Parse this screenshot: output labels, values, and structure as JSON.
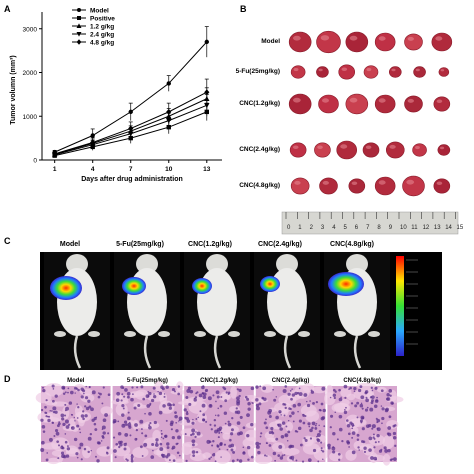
{
  "panels": {
    "a": {
      "letter": "A"
    },
    "b": {
      "letter": "B"
    },
    "c": {
      "letter": "C"
    },
    "d": {
      "letter": "D"
    }
  },
  "chart_data": {
    "type": "line",
    "xlabel": "Days after drug administration",
    "ylabel": "Tumor volumn (mm³)",
    "x": [
      1,
      4,
      7,
      10,
      13
    ],
    "x_ticks": [
      "1",
      "4",
      "7",
      "10",
      "13"
    ],
    "y_ticks": [
      "0",
      "1000",
      "2000",
      "3000"
    ],
    "ylim": [
      0,
      3200
    ],
    "legend_position": "top-left",
    "series": [
      {
        "name": "Model",
        "marker": "circle",
        "values": [
          180,
          560,
          1100,
          1750,
          2700
        ],
        "errors": [
          40,
          150,
          200,
          180,
          350
        ]
      },
      {
        "name": "Positive",
        "marker": "square",
        "values": [
          100,
          300,
          500,
          750,
          1100
        ],
        "errors": [
          30,
          80,
          120,
          150,
          200
        ]
      },
      {
        "name": "1.2 g/kg",
        "marker": "triangle-up",
        "values": [
          130,
          380,
          660,
          1000,
          1400
        ],
        "errors": [
          30,
          100,
          120,
          180,
          250
        ]
      },
      {
        "name": "2.4 g/kg",
        "marker": "triangle-down",
        "values": [
          120,
          350,
          600,
          900,
          1250
        ],
        "errors": [
          30,
          100,
          120,
          170,
          250
        ]
      },
      {
        "name": "4.8 g/kg",
        "marker": "diamond",
        "values": [
          140,
          400,
          720,
          1100,
          1550
        ],
        "errors": [
          30,
          110,
          150,
          200,
          300
        ]
      }
    ]
  },
  "tumor_photo": {
    "rows": [
      "Model",
      "5-Fu(25mg/kg)",
      "CNC(1.2g/kg)",
      "CNC(2.4g/kg)",
      "CNC(4.8g/kg)"
    ],
    "ruler_numbers": [
      "0",
      "1",
      "2",
      "3",
      "4",
      "5",
      "6",
      "7",
      "8",
      "9",
      "10",
      "11",
      "12",
      "13",
      "14",
      "15"
    ]
  },
  "imaging": {
    "labels": [
      "Model",
      "5-Fu(25mg/kg)",
      "CNC(1.2g/kg)",
      "CNC(2.4g/kg)",
      "CNC(4.8g/kg)"
    ]
  },
  "histology": {
    "labels": [
      "Model",
      "5-Fu(25mg/kg)",
      "CNC(1.2g/kg)",
      "CNC(2.4g/kg)",
      "CNC(4.8g/kg)"
    ]
  }
}
